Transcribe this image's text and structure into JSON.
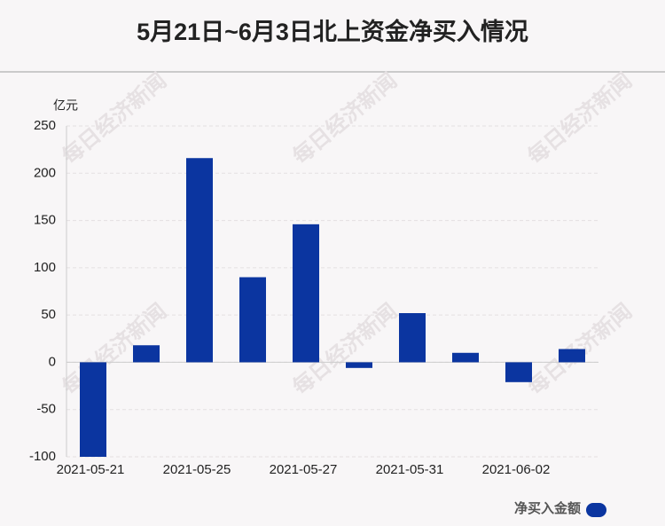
{
  "chart_data": {
    "type": "bar",
    "title": "5月21日~6月3日北上资金净买入情况",
    "y_label": "亿元",
    "watermark": "每日经济新闻",
    "categories": [
      "2021-05-21",
      null,
      "2021-05-25",
      null,
      "2021-05-27",
      null,
      "2021-05-31",
      null,
      "2021-06-02",
      null
    ],
    "series": [
      {
        "name": "净买入金额",
        "color": "#0b35a0",
        "values": [
          -100,
          18,
          216,
          90,
          146,
          -6,
          52,
          10,
          -21,
          14
        ]
      }
    ],
    "ylim": [
      -100,
      250
    ],
    "yticks": [
      -100,
      -50,
      0,
      50,
      100,
      150,
      200,
      250
    ],
    "grid": true,
    "legend": "bottom-right"
  }
}
